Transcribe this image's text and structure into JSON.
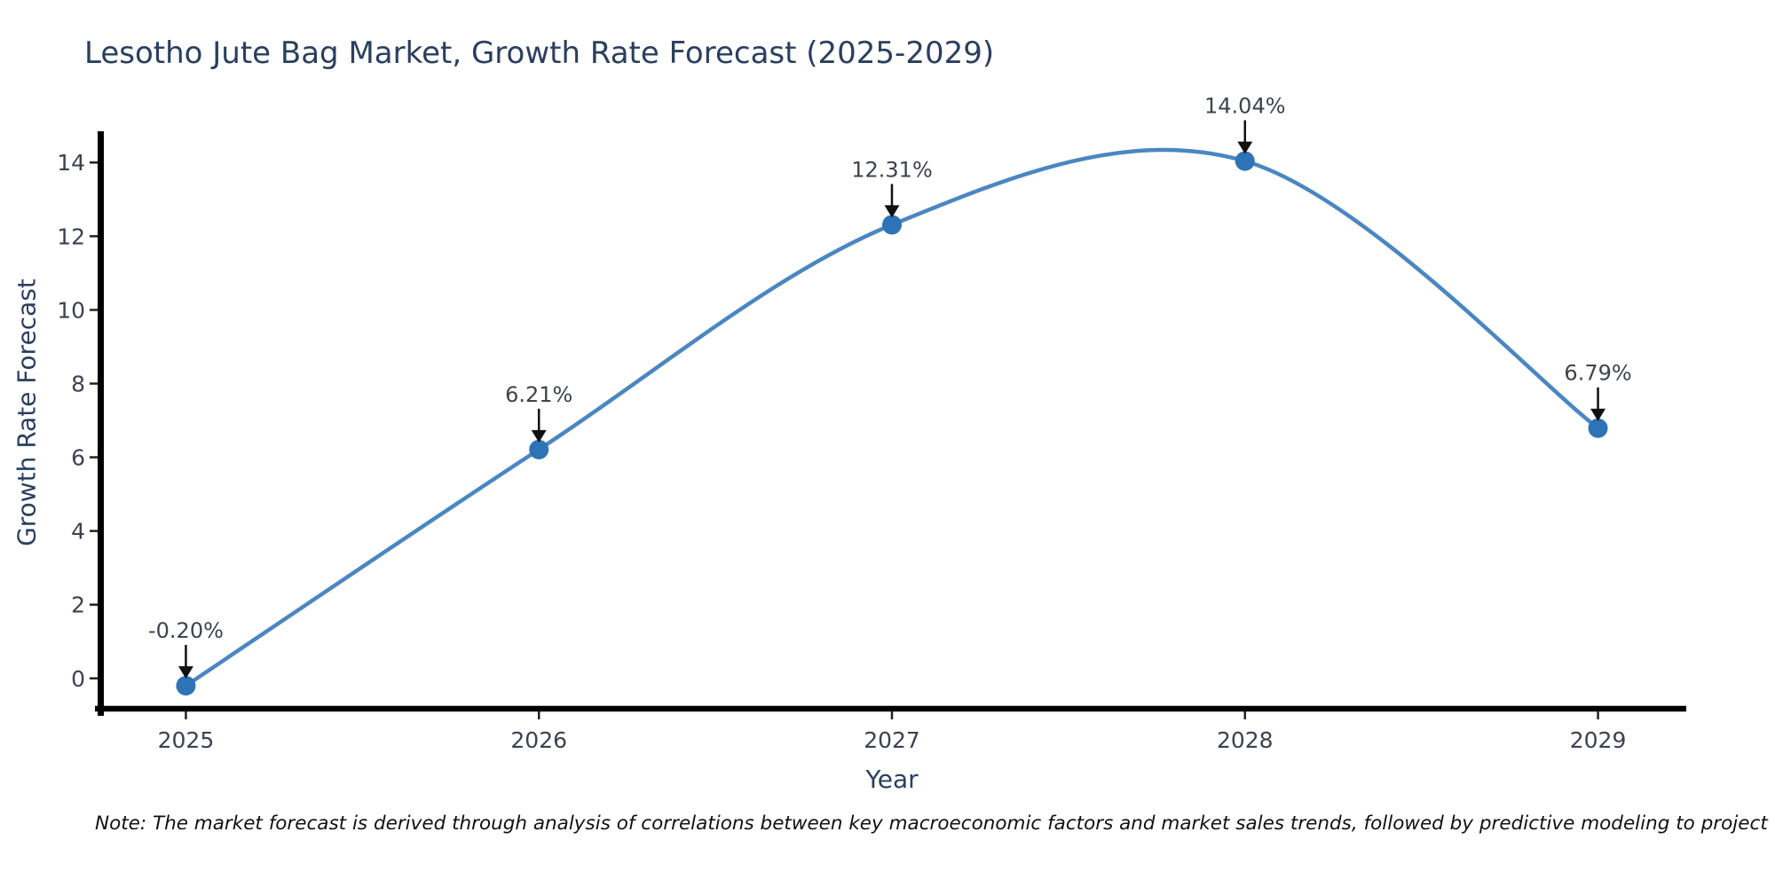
{
  "figure": {
    "title": "Lesotho Jute Bag Market, Growth Rate Forecast (2025-2029)",
    "note": "Note: The market forecast is derived through analysis of correlations between key macroeconomic factors and market sales trends, followed by predictive modeling to project future sales"
  },
  "chart_data": {
    "type": "line",
    "title": "Lesotho Jute Bag Market, Growth Rate Forecast (2025-2029)",
    "xlabel": "Year",
    "ylabel": "Growth Rate Forecast",
    "x": [
      2025,
      2026,
      2027,
      2028,
      2029
    ],
    "y": [
      -0.2,
      6.21,
      12.31,
      14.04,
      6.79
    ],
    "point_labels": [
      "-0.20%",
      "6.21%",
      "12.31%",
      "14.04%",
      "6.79%"
    ],
    "xticks": [
      2025,
      2026,
      2027,
      2028,
      2029
    ],
    "yticks": [
      0,
      2,
      4,
      6,
      8,
      10,
      12,
      14
    ],
    "xlim": [
      2024.75,
      2029.25
    ],
    "ylim": [
      -0.8,
      14.8
    ],
    "grid": false,
    "legend": "none",
    "line_shape": "spline",
    "annotation_arrows": true,
    "colors": {
      "line": "#4a86c2",
      "marker": "#2e73b6",
      "arrow": "#111111",
      "axis": "#000000",
      "title_text": "#2a3f5f",
      "axis_label_text": "#2a3f5f",
      "tick_text": "#3b4252",
      "annotation_text": "#3d434d",
      "note_text": "#111111",
      "background": "#ffffff"
    }
  }
}
